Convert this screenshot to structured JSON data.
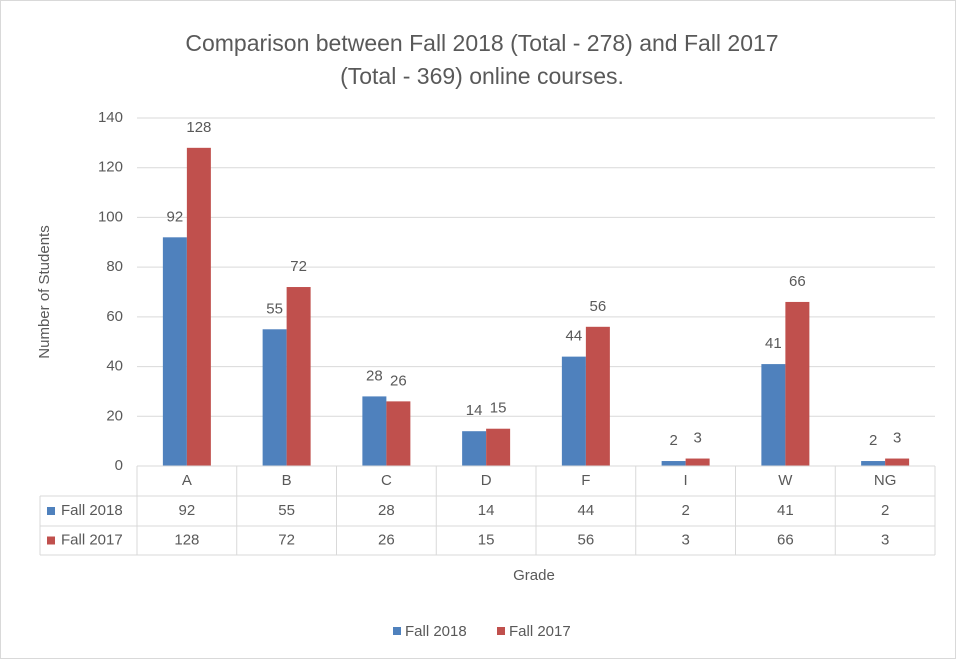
{
  "chart_data": {
    "type": "bar",
    "title": [
      "Comparison between Fall 2018 (Total - 278) and Fall 2017",
      "(Total - 369) online courses."
    ],
    "x_label": "Grade",
    "y_label": "Number of Students",
    "categories": [
      "A",
      "B",
      "C",
      "D",
      "F",
      "I",
      "W",
      "NG"
    ],
    "series": [
      {
        "name": "Fall 2018",
        "color": "#4f81bd",
        "values": [
          92,
          55,
          28,
          14,
          44,
          2,
          41,
          2
        ]
      },
      {
        "name": "Fall 2017",
        "color": "#c0504d",
        "values": [
          128,
          72,
          26,
          15,
          56,
          3,
          66,
          3
        ]
      }
    ],
    "ylim": [
      0,
      140
    ],
    "yticks": [
      0,
      20,
      40,
      60,
      80,
      100,
      120,
      140
    ],
    "grid": true,
    "data_table": true,
    "legend": "bottom"
  }
}
